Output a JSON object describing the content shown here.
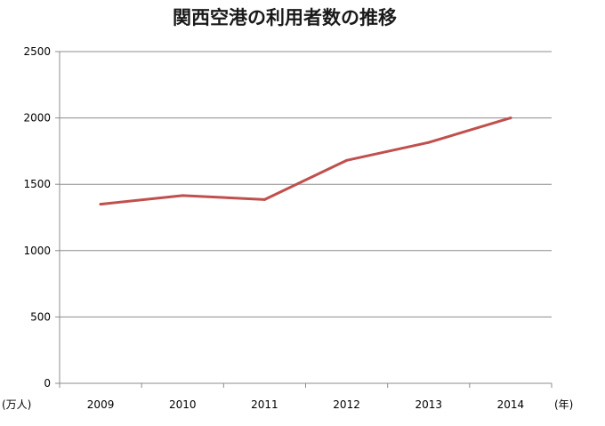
{
  "chart_data": {
    "type": "line",
    "title": "関西空港の利用者数の推移",
    "xlabel": "",
    "ylabel": "",
    "x_unit": "(年)",
    "y_unit": "(万人)",
    "categories": [
      "2009",
      "2010",
      "2011",
      "2012",
      "2013",
      "2014"
    ],
    "series": [
      {
        "values": [
          1350,
          1415,
          1385,
          1680,
          1815,
          2000
        ],
        "color": "#c0504d"
      }
    ],
    "ylim": [
      0,
      2500
    ],
    "yticks": [
      0,
      500,
      1000,
      1500,
      2000,
      2500
    ],
    "grid": true,
    "legend": "none"
  }
}
